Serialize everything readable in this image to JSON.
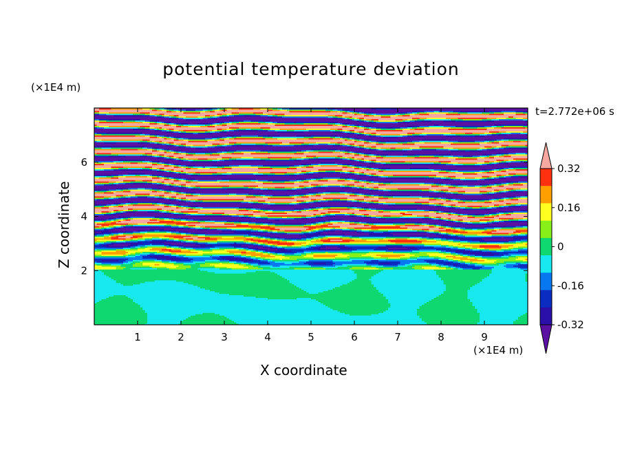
{
  "chart_data": {
    "type": "heatmap",
    "title": "potential temperature deviation",
    "xlabel": "X coordinate",
    "ylabel": "Z coordinate",
    "x_unit": "(×1E4 m)",
    "y_unit": "(×1E4 m)",
    "time_label": "t=2.772e+06 s",
    "xlim": [
      0,
      10
    ],
    "ylim": [
      0,
      8
    ],
    "x_ticks": [
      "1",
      "2",
      "3",
      "4",
      "5",
      "6",
      "7",
      "8",
      "9"
    ],
    "y_ticks": [
      "2",
      "4",
      "6"
    ],
    "colorbar": {
      "labels": [
        "0.32",
        "0.16",
        "0",
        "-0.16",
        "-0.32"
      ],
      "label_values": [
        0.32,
        0.16,
        0,
        -0.16,
        -0.32
      ],
      "levels": [
        -0.4,
        -0.32,
        -0.24,
        -0.16,
        -0.08,
        0,
        0.08,
        0.16,
        0.24,
        0.32,
        0.4
      ],
      "colors": [
        "#5a10a0",
        "#2a10a8",
        "#0a2cc0",
        "#0878f0",
        "#18e8f0",
        "#10d870",
        "#88f018",
        "#ffff20",
        "#ffa000",
        "#ff3010",
        "#f8a8a0"
      ],
      "extend": "both"
    },
    "fields": {
      "lower_layer_z_top": 2.05,
      "lower_layer_base_value": -0.04,
      "lower_layer_patch_value": 0.04,
      "upper_layers_value_high": 0.45,
      "upper_layers_value_low": -0.45
    }
  }
}
